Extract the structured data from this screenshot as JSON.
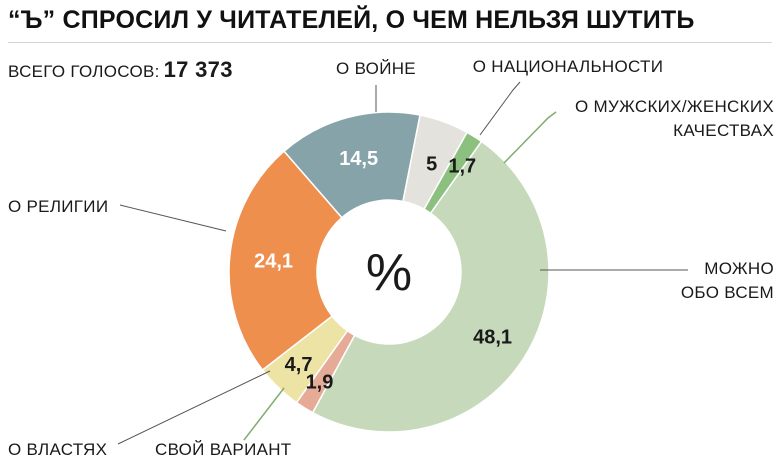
{
  "header": {
    "title": "“Ъ” СПРОСИЛ У ЧИТАТЕЛЕЙ, О ЧЕМ НЕЛЬЗЯ ШУТИТЬ",
    "votes_label": "ВСЕГО ГОЛОСОВ:",
    "votes_value": "17 373"
  },
  "chart_data": {
    "type": "pie",
    "unit": "%",
    "center_label": "%",
    "slices": [
      {
        "label": "О ВОЙНЕ",
        "value": 14.5,
        "value_label": "14,5",
        "color": "#86a3aa",
        "text_color": "#ffffff"
      },
      {
        "label": "О НАЦИОНАЛЬНОСТИ",
        "value": 5,
        "value_label": "5",
        "color": "#e3e2dc",
        "text_color": "#1a1a1a"
      },
      {
        "label": "О МУЖСКИХ/ЖЕНСКИХ КАЧЕСТВАХ",
        "value": 1.7,
        "value_label": "1,7",
        "color": "#8cc07f",
        "text_color": "#1a1a1a"
      },
      {
        "label": "МОЖНО ОБО ВСЕМ",
        "value": 48.1,
        "value_label": "48,1",
        "color": "#c6dabb",
        "text_color": "#1a1a1a"
      },
      {
        "label": "СВОЙ ВАРИАНТ",
        "value": 1.9,
        "value_label": "1,9",
        "color": "#e5ab96",
        "text_color": "#1a1a1a"
      },
      {
        "label": "О ВЛАСТЯХ",
        "value": 4.7,
        "value_label": "4,7",
        "color": "#ede3a4",
        "text_color": "#1a1a1a"
      },
      {
        "label": "О РЕЛИГИИ",
        "value": 24.1,
        "value_label": "24,1",
        "color": "#ee8f4e",
        "text_color": "#ffffff"
      }
    ]
  }
}
